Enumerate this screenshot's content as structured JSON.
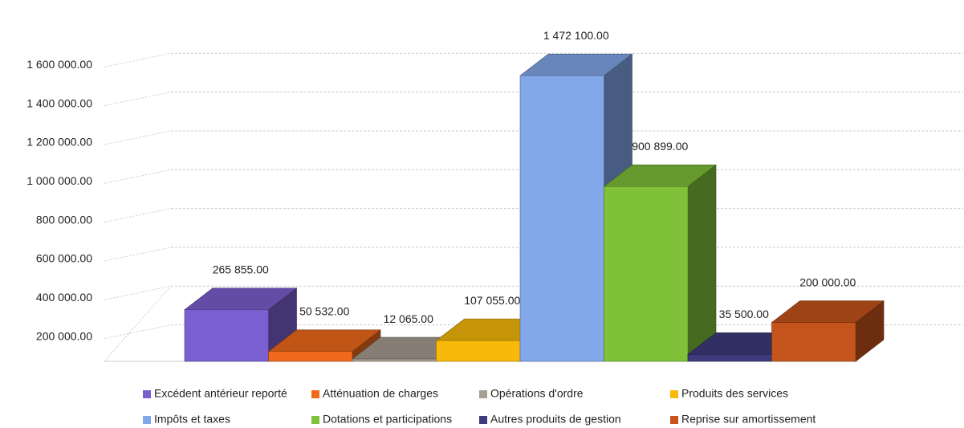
{
  "chart_data": {
    "type": "bar3d",
    "categories": [
      "Excédent antérieur reporté",
      "Atténuation de charges",
      "Opérations d'ordre",
      "Produits des services",
      "Impôts et taxes",
      "Dotations et participations",
      "Autres produits de gestion",
      "Reprise sur amortissement"
    ],
    "values": [
      265855,
      50532,
      12065,
      107055,
      1472100,
      900899,
      35500,
      200000
    ],
    "value_labels": [
      "265 855.00",
      "50 532.00",
      "12 065.00",
      "107 055.00",
      "1 472 100.00",
      "900 899.00",
      "35 500.00",
      "200 000.00"
    ],
    "colors": [
      "#7a5fd0",
      "#f06a1c",
      "#a89e92",
      "#f7b90a",
      "#82a8ea",
      "#80c13a",
      "#3d3b7c",
      "#c4541c"
    ],
    "ylim": [
      0,
      1800000
    ],
    "yticks": [
      {
        "value": 200000,
        "label": "200 000.00"
      },
      {
        "value": 400000,
        "label": "400 000.00"
      },
      {
        "value": 600000,
        "label": "600 000.00"
      },
      {
        "value": 800000,
        "label": "800 000.00"
      },
      {
        "value": 1000000,
        "label": "1 000 000.00"
      },
      {
        "value": 1200000,
        "label": "1 200 000.00"
      },
      {
        "value": 1400000,
        "label": "1 400 000.00"
      },
      {
        "value": 1600000,
        "label": "1 600 000.00"
      }
    ],
    "grid": true,
    "legend": "bottom"
  }
}
